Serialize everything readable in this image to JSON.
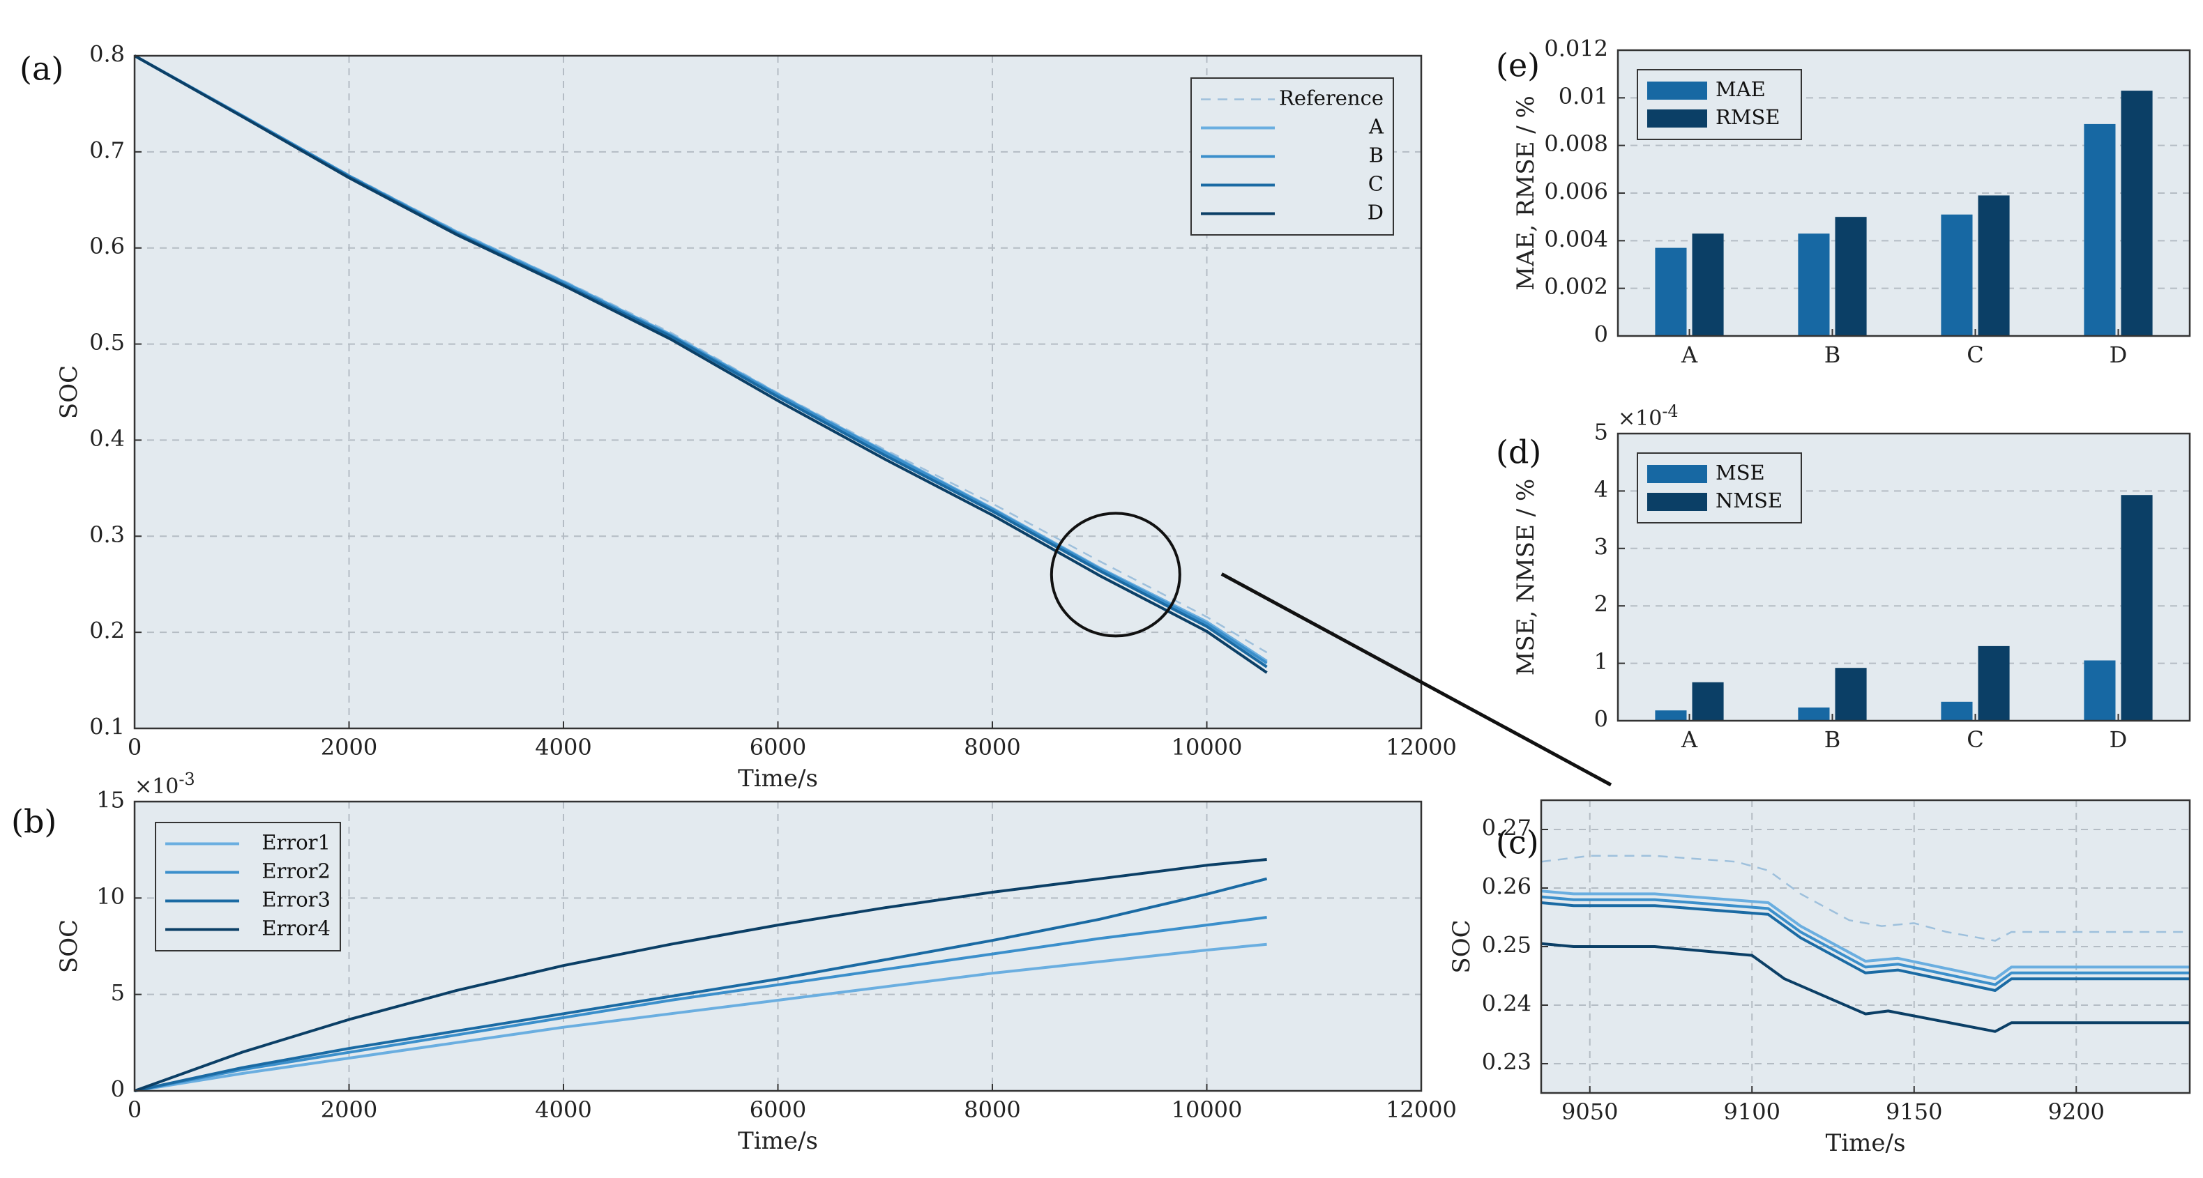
{
  "colors": {
    "panel_bg": "#e3eaef",
    "grid": "#b4bcc4",
    "frame": "#333333",
    "reference": "#9ec0dc",
    "A": "#6aaee0",
    "B": "#3b8fcb",
    "C": "#1a6aa3",
    "D": "#0b3f66",
    "bar_light": "#1768a3",
    "bar_dark": "#0b3f66",
    "zoom": "#111111"
  },
  "chart_data": [
    {
      "id": "a",
      "panel_label": "(a)",
      "type": "line",
      "xlabel": "Time/s",
      "ylabel": "SOC",
      "xlim": [
        0,
        12000
      ],
      "ylim": [
        0.1,
        0.8
      ],
      "xticks": [
        "0",
        "2000",
        "4000",
        "6000",
        "8000",
        "10000",
        "12000"
      ],
      "yticks": [
        "0.1",
        "0.2",
        "0.3",
        "0.4",
        "0.5",
        "0.6",
        "0.7",
        "0.8"
      ],
      "grid": true,
      "legend": {
        "position": "top-right",
        "entries": [
          "Reference",
          "A",
          "B",
          "C",
          "D"
        ]
      },
      "series": [
        {
          "name": "Reference",
          "style": "dashed",
          "x": [
            0,
            1000,
            2000,
            3000,
            4000,
            5000,
            6000,
            7000,
            8000,
            9000,
            10000,
            10560
          ],
          "y": [
            0.8,
            0.738,
            0.676,
            0.618,
            0.566,
            0.512,
            0.449,
            0.39,
            0.334,
            0.274,
            0.216,
            0.179
          ]
        },
        {
          "name": "A",
          "x": [
            0,
            1000,
            2000,
            3000,
            4000,
            5000,
            6000,
            7000,
            8000,
            9000,
            10000,
            10560
          ],
          "y": [
            0.8,
            0.738,
            0.675,
            0.617,
            0.565,
            0.51,
            0.448,
            0.388,
            0.329,
            0.267,
            0.211,
            0.17
          ]
        },
        {
          "name": "B",
          "x": [
            0,
            1000,
            2000,
            3000,
            4000,
            5000,
            6000,
            7000,
            8000,
            9000,
            10000,
            10560
          ],
          "y": [
            0.8,
            0.738,
            0.675,
            0.616,
            0.564,
            0.509,
            0.447,
            0.387,
            0.328,
            0.266,
            0.209,
            0.168
          ]
        },
        {
          "name": "C",
          "x": [
            0,
            1000,
            2000,
            3000,
            4000,
            5000,
            6000,
            7000,
            8000,
            9000,
            10000,
            10560
          ],
          "y": [
            0.8,
            0.737,
            0.674,
            0.615,
            0.562,
            0.508,
            0.445,
            0.384,
            0.326,
            0.264,
            0.206,
            0.164
          ]
        },
        {
          "name": "D",
          "x": [
            0,
            1000,
            2000,
            3000,
            4000,
            5000,
            6000,
            7000,
            8000,
            9000,
            10000,
            10560
          ],
          "y": [
            0.8,
            0.737,
            0.673,
            0.614,
            0.561,
            0.505,
            0.441,
            0.38,
            0.322,
            0.259,
            0.201,
            0.158
          ]
        }
      ],
      "annotation": {
        "type": "zoom-circle",
        "center_x": 9150,
        "center_y": 0.26
      }
    },
    {
      "id": "b",
      "panel_label": "(b)",
      "type": "line",
      "xlabel": "Time/s",
      "ylabel": "SOC",
      "xlim": [
        0,
        12000
      ],
      "ylim": [
        0,
        15
      ],
      "multiplier": "×10",
      "multiplier_exp": "-3",
      "xticks": [
        "0",
        "2000",
        "4000",
        "6000",
        "8000",
        "10000",
        "12000"
      ],
      "yticks": [
        "0",
        "5",
        "10",
        "15"
      ],
      "grid": true,
      "legend": {
        "position": "top-left",
        "entries": [
          "Error1",
          "Error2",
          "Error3",
          "Error4"
        ]
      },
      "series": [
        {
          "name": "Error1",
          "x": [
            0,
            1000,
            2000,
            3000,
            4000,
            5000,
            6000,
            7000,
            8000,
            9000,
            10000,
            10560
          ],
          "y": [
            0,
            0.9,
            1.7,
            2.5,
            3.3,
            4.0,
            4.7,
            5.4,
            6.1,
            6.7,
            7.3,
            7.6
          ]
        },
        {
          "name": "Error2",
          "x": [
            0,
            1000,
            2000,
            3000,
            4000,
            5000,
            6000,
            7000,
            8000,
            9000,
            10000,
            10560
          ],
          "y": [
            0,
            1.1,
            2.0,
            2.9,
            3.8,
            4.7,
            5.5,
            6.3,
            7.1,
            7.9,
            8.6,
            9.0
          ]
        },
        {
          "name": "Error3",
          "x": [
            0,
            1000,
            2000,
            3000,
            4000,
            5000,
            6000,
            7000,
            8000,
            9000,
            10000,
            10560
          ],
          "y": [
            0,
            1.2,
            2.2,
            3.1,
            4.0,
            4.9,
            5.8,
            6.8,
            7.8,
            8.9,
            10.2,
            11.0
          ]
        },
        {
          "name": "Error4",
          "x": [
            0,
            1000,
            2000,
            3000,
            4000,
            5000,
            6000,
            7000,
            8000,
            9000,
            10000,
            10560
          ],
          "y": [
            0,
            2.0,
            3.7,
            5.2,
            6.5,
            7.6,
            8.6,
            9.5,
            10.3,
            11.0,
            11.7,
            12.0
          ]
        }
      ]
    },
    {
      "id": "e",
      "panel_label": "(e)",
      "type": "bar",
      "ylabel": "MAE, RMSE / %",
      "categories": [
        "A",
        "B",
        "C",
        "D"
      ],
      "ylim": [
        0,
        0.012
      ],
      "yticks": [
        "0",
        "0.002",
        "0.004",
        "0.006",
        "0.008",
        "0.01",
        "0.012"
      ],
      "grid": true,
      "legend": {
        "position": "top-left",
        "entries": [
          "MAE",
          "RMSE"
        ]
      },
      "series": [
        {
          "name": "MAE",
          "values": [
            0.0037,
            0.0043,
            0.0051,
            0.0089
          ]
        },
        {
          "name": "RMSE",
          "values": [
            0.0043,
            0.005,
            0.0059,
            0.0103
          ]
        }
      ]
    },
    {
      "id": "d",
      "panel_label": "(d)",
      "type": "bar",
      "ylabel": "MSE, NMSE / %",
      "categories": [
        "A",
        "B",
        "C",
        "D"
      ],
      "ylim": [
        0,
        5
      ],
      "multiplier": "×10",
      "multiplier_exp": "-4",
      "yticks": [
        "0",
        "1",
        "2",
        "3",
        "4",
        "5"
      ],
      "grid": true,
      "legend": {
        "position": "top-left",
        "entries": [
          "MSE",
          "NMSE"
        ]
      },
      "series": [
        {
          "name": "MSE",
          "values": [
            0.18,
            0.23,
            0.33,
            1.05
          ]
        },
        {
          "name": "NMSE",
          "values": [
            0.67,
            0.92,
            1.3,
            3.93
          ]
        }
      ]
    },
    {
      "id": "c",
      "panel_label": "(c)",
      "type": "line",
      "xlabel": "Time/s",
      "ylabel": "SOC",
      "xlim": [
        9035,
        9235
      ],
      "ylim": [
        0.225,
        0.275
      ],
      "xticks": [
        "9050",
        "9100",
        "9150",
        "9200"
      ],
      "yticks": [
        "0.23",
        "0.24",
        "0.25",
        "0.26",
        "0.27"
      ],
      "grid": true,
      "series": [
        {
          "name": "Reference",
          "style": "dashed",
          "x": [
            9035,
            9050,
            9070,
            9095,
            9105,
            9115,
            9130,
            9140,
            9150,
            9160,
            9175,
            9180,
            9200,
            9235
          ],
          "y": [
            0.2645,
            0.2655,
            0.2655,
            0.2645,
            0.263,
            0.259,
            0.2545,
            0.2535,
            0.254,
            0.2525,
            0.251,
            0.2525,
            0.2525,
            0.2525
          ]
        },
        {
          "name": "A",
          "x": [
            9035,
            9045,
            9070,
            9105,
            9115,
            9135,
            9145,
            9175,
            9180,
            9235
          ],
          "y": [
            0.2595,
            0.259,
            0.259,
            0.2575,
            0.2535,
            0.2475,
            0.248,
            0.2445,
            0.2465,
            0.2465
          ]
        },
        {
          "name": "B",
          "x": [
            9035,
            9045,
            9070,
            9105,
            9115,
            9135,
            9145,
            9175,
            9180,
            9235
          ],
          "y": [
            0.2585,
            0.258,
            0.258,
            0.2565,
            0.2525,
            0.2465,
            0.247,
            0.2435,
            0.2455,
            0.2455
          ]
        },
        {
          "name": "C",
          "x": [
            9035,
            9045,
            9070,
            9105,
            9115,
            9135,
            9145,
            9175,
            9180,
            9235
          ],
          "y": [
            0.2575,
            0.257,
            0.257,
            0.2555,
            0.2515,
            0.2455,
            0.246,
            0.2425,
            0.2445,
            0.2445
          ]
        },
        {
          "name": "D",
          "x": [
            9035,
            9045,
            9070,
            9100,
            9110,
            9135,
            9142,
            9175,
            9180,
            9235
          ],
          "y": [
            0.2505,
            0.25,
            0.25,
            0.2485,
            0.2445,
            0.2385,
            0.239,
            0.2355,
            0.237,
            0.237
          ]
        }
      ]
    }
  ]
}
